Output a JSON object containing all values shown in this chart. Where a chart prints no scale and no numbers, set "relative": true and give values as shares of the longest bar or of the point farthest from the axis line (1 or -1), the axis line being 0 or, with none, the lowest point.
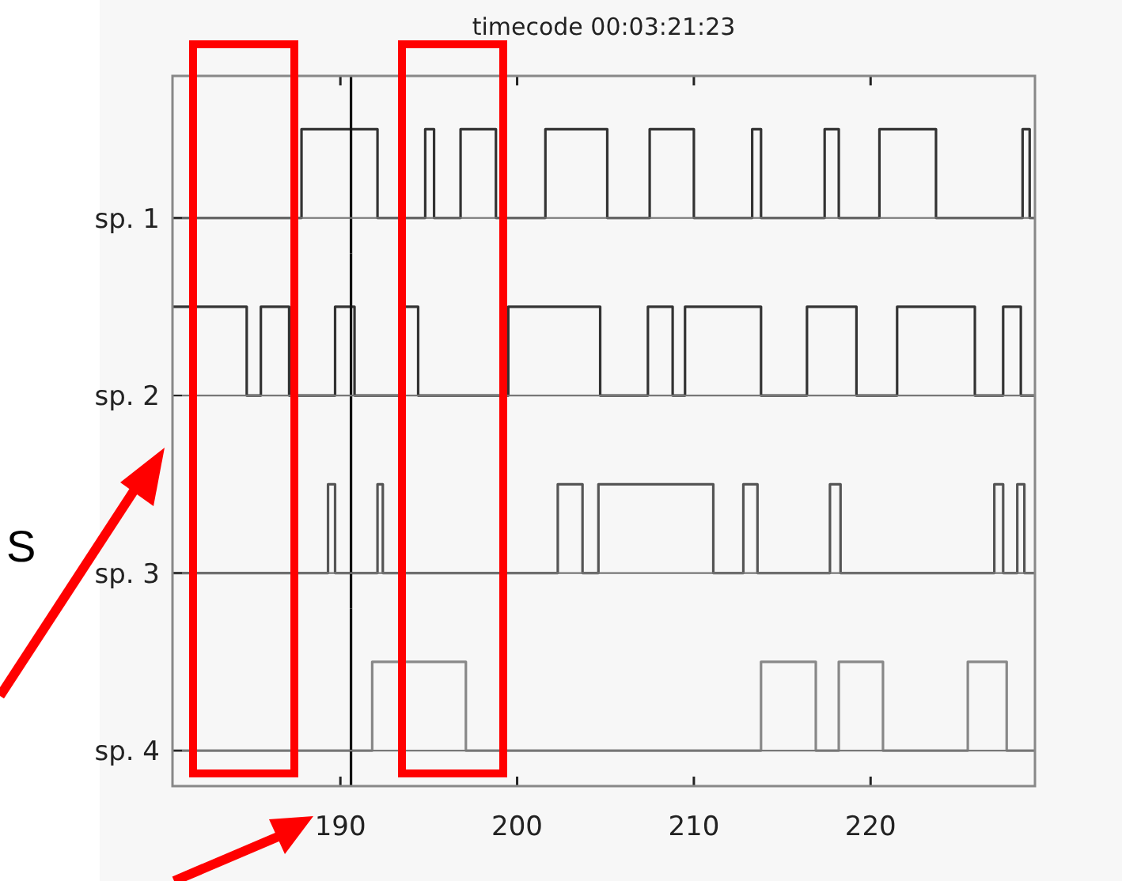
{
  "chart_data": [
    {
      "type": "step",
      "title": "timecode 00:03:21:23",
      "annotations": [
        "S"
      ],
      "ylabel": "sp. 1",
      "relative": true,
      "xlim": [
        180.5,
        229.3
      ],
      "xticks": [
        190,
        200,
        210,
        220
      ],
      "tick_labels": false,
      "line_style": "solid",
      "ref_lines": [
        {
          "axis": "x",
          "value": 190.6,
          "color": "#111111"
        }
      ],
      "series": [
        {
          "color": "#333333",
          "x": [
            180.5,
            187.8,
            192.1,
            194.8,
            195.3,
            196.8,
            198.8,
            201.6,
            205.1,
            207.5,
            210.0,
            213.3,
            213.8,
            217.4,
            218.2,
            220.5,
            223.7,
            228.6,
            229.0,
            229.3
          ],
          "values": [
            0,
            1,
            0,
            1,
            0,
            1,
            0,
            1,
            0,
            1,
            0,
            1,
            0,
            1,
            0,
            1,
            0,
            1,
            0,
            0
          ]
        }
      ]
    },
    {
      "type": "step",
      "ylabel": "sp. 2",
      "relative": true,
      "xlim": [
        180.5,
        229.3
      ],
      "tick_labels": false,
      "line_style": "solid",
      "ref_lines": [
        {
          "axis": "x",
          "value": 190.6,
          "color": "#111111"
        }
      ],
      "series": [
        {
          "color": "#333333",
          "x": [
            180.5,
            184.7,
            185.5,
            187.1,
            189.7,
            190.8,
            193.5,
            194.4,
            199.5,
            204.7,
            207.4,
            208.8,
            209.5,
            213.8,
            216.4,
            219.2,
            221.5,
            225.9,
            227.5,
            228.5,
            229.3
          ],
          "values": [
            1,
            0,
            1,
            0,
            1,
            0,
            1,
            0,
            1,
            0,
            1,
            0,
            1,
            0,
            1,
            0,
            1,
            0,
            1,
            0,
            0
          ]
        }
      ]
    },
    {
      "type": "step",
      "ylabel": "sp. 3",
      "relative": true,
      "xlim": [
        180.5,
        229.3
      ],
      "tick_labels": false,
      "line_style": "solid",
      "ref_lines": [
        {
          "axis": "x",
          "value": 190.6,
          "color": "#111111"
        }
      ],
      "series": [
        {
          "color": "#555555",
          "x": [
            180.5,
            189.3,
            189.7,
            192.1,
            192.4,
            202.3,
            203.7,
            204.6,
            211.1,
            212.8,
            213.6,
            217.7,
            218.3,
            227.0,
            227.5,
            228.3,
            228.7,
            229.3
          ],
          "values": [
            0,
            1,
            0,
            1,
            0,
            1,
            0,
            1,
            0,
            1,
            0,
            1,
            0,
            1,
            0,
            1,
            0,
            0
          ]
        }
      ]
    },
    {
      "type": "step",
      "ylabel": "sp. 4",
      "relative": true,
      "xlim": [
        180.5,
        229.3
      ],
      "xticks": [
        190,
        200,
        210,
        220
      ],
      "tick_labels": "x",
      "line_style": "solid",
      "ref_lines": [
        {
          "axis": "x",
          "value": 190.6,
          "color": "#111111"
        }
      ],
      "series": [
        {
          "color": "#888888",
          "x": [
            180.5,
            191.8,
            197.1,
            213.8,
            216.9,
            218.2,
            220.7,
            225.5,
            227.7,
            229.3
          ],
          "values": [
            0,
            1,
            0,
            1,
            0,
            1,
            0,
            1,
            0,
            0
          ]
        }
      ]
    }
  ]
}
